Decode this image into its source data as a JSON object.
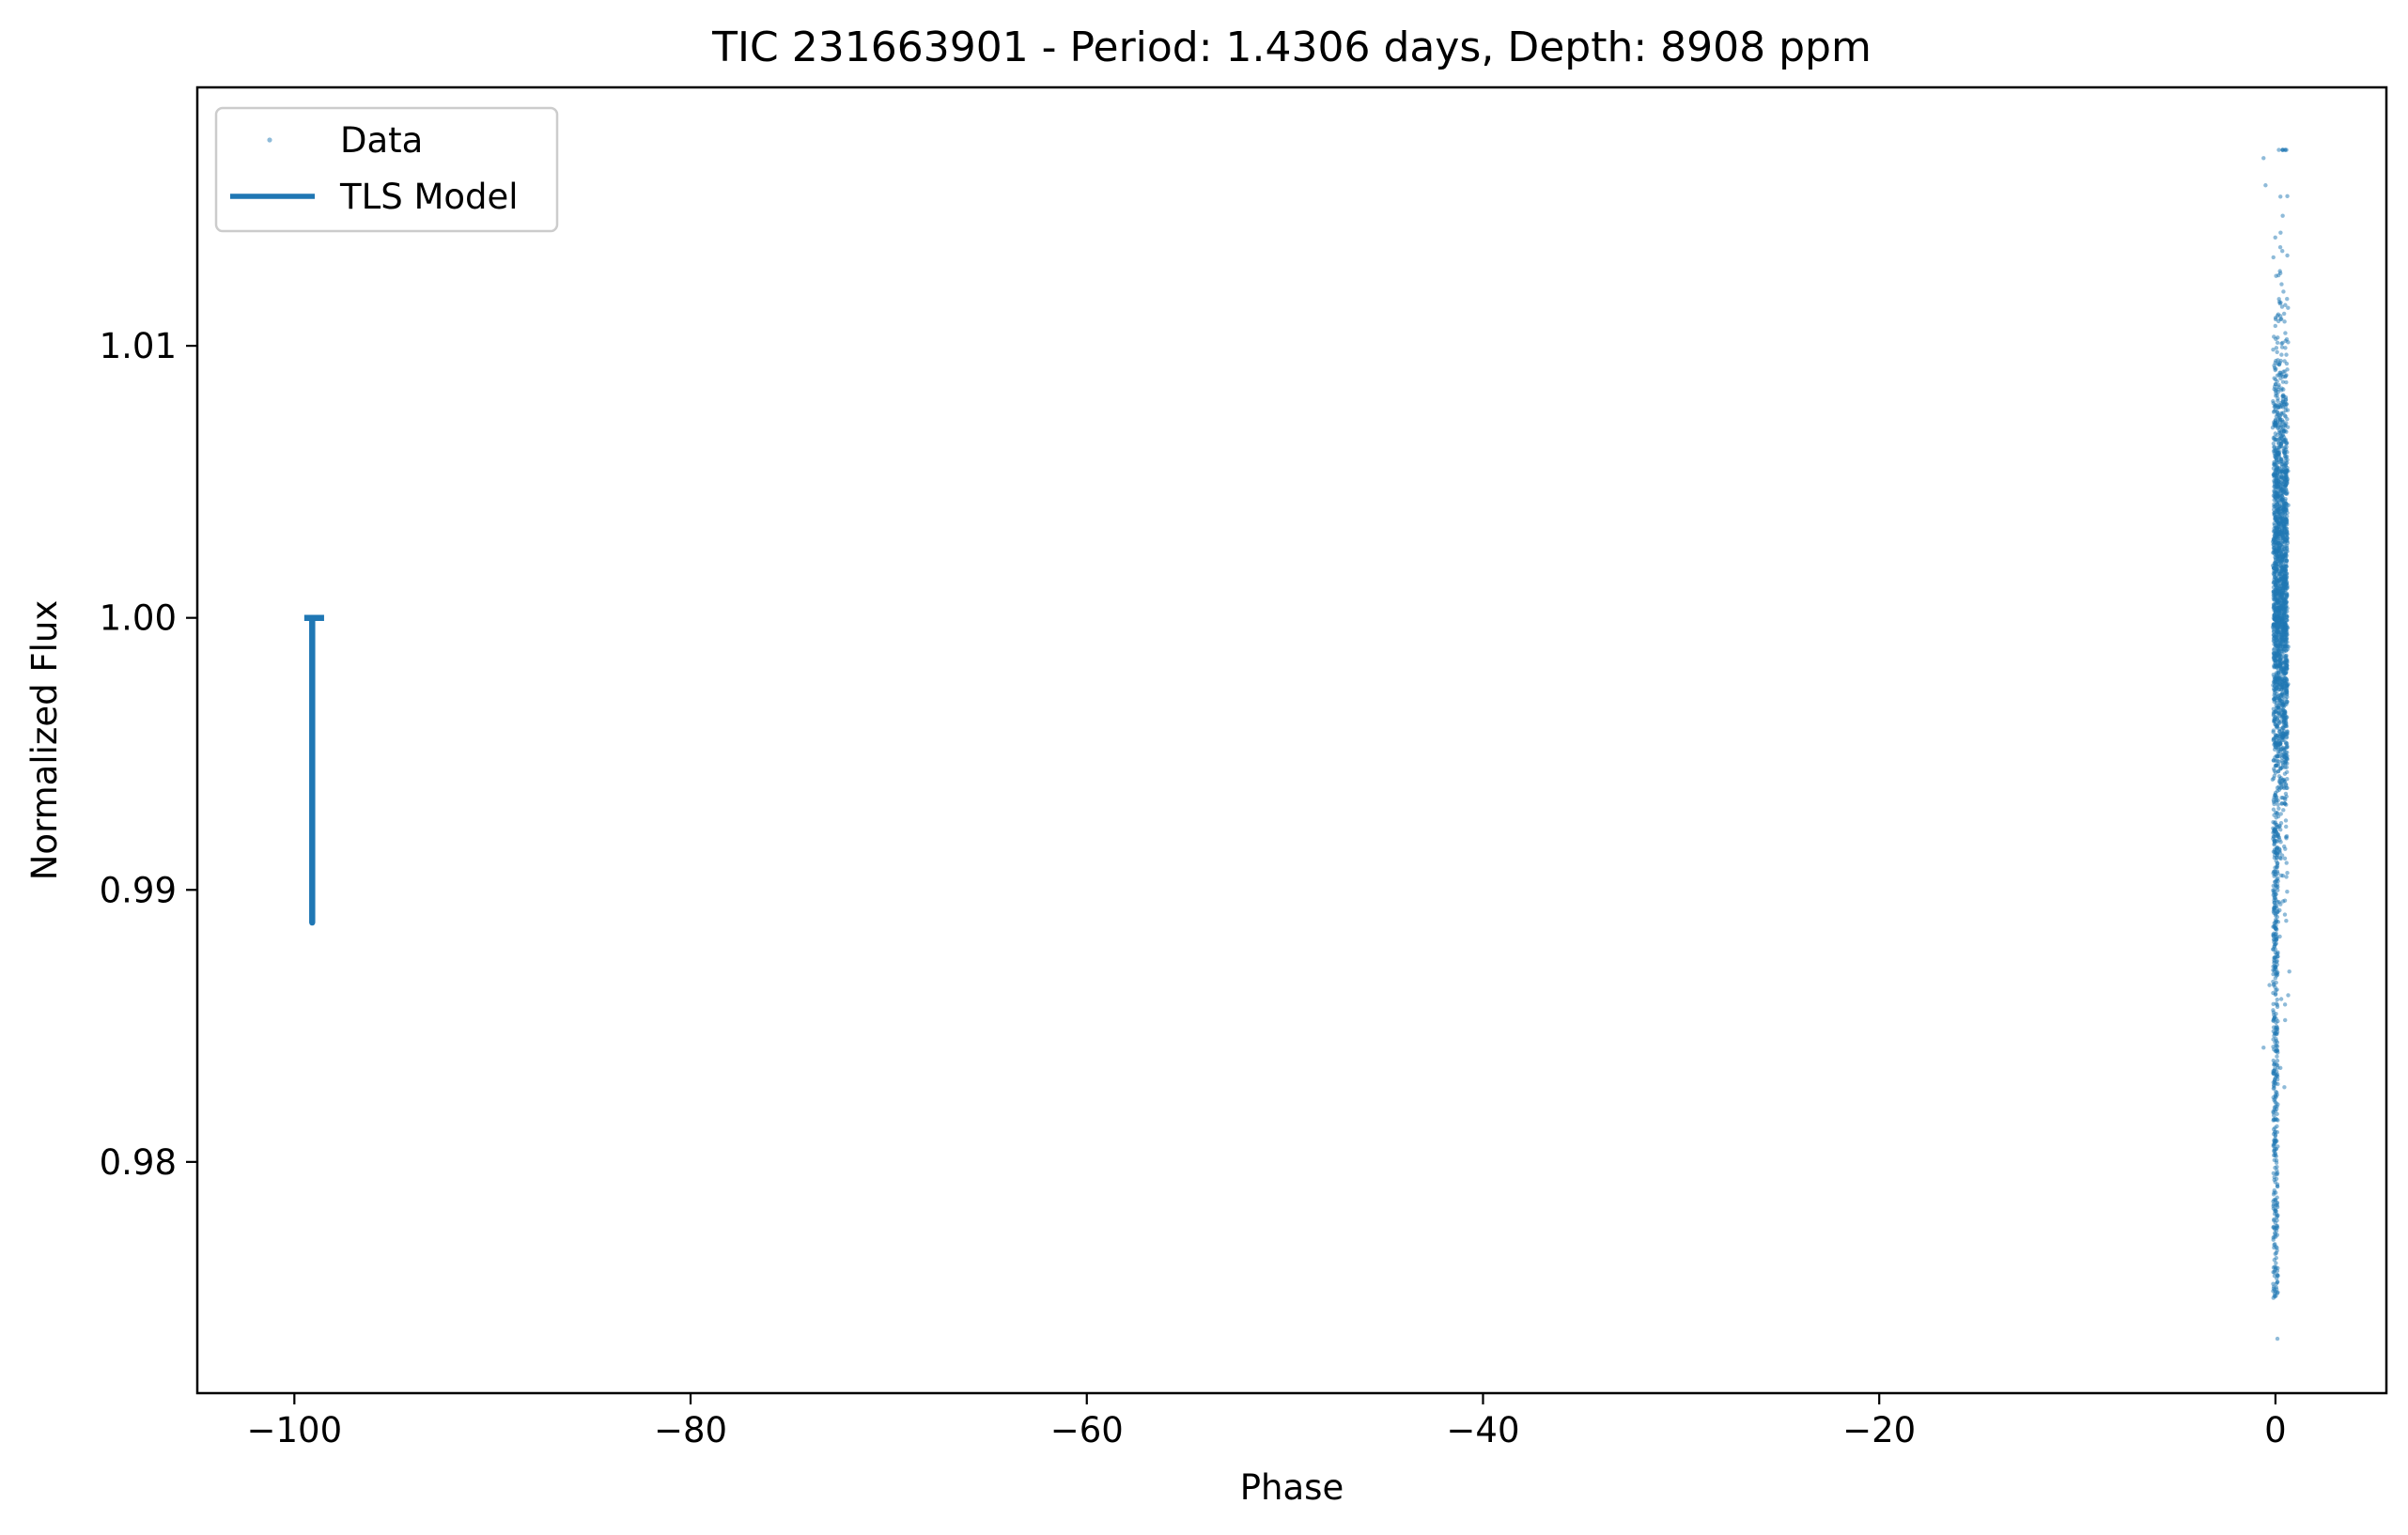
{
  "chart_data": {
    "type": "scatter",
    "title": "TIC 231663901 - Period: 1.4306 days, Depth: 8908 ppm",
    "xlabel": "Phase",
    "ylabel": "Normalized Flux",
    "xlim": [
      -104.9,
      5.6
    ],
    "ylim": [
      0.9715,
      1.0195
    ],
    "xticks": [
      {
        "value": -100,
        "label": "−100"
      },
      {
        "value": -80,
        "label": "−80"
      },
      {
        "value": -60,
        "label": "−60"
      },
      {
        "value": -40,
        "label": "−40"
      },
      {
        "value": -20,
        "label": "−20"
      },
      {
        "value": 0,
        "label": "0"
      }
    ],
    "yticks": [
      {
        "value": 0.98,
        "label": "0.98"
      },
      {
        "value": 0.99,
        "label": "0.99"
      },
      {
        "value": 1.0,
        "label": "1.00"
      },
      {
        "value": 1.01,
        "label": "1.01"
      }
    ],
    "grid": false,
    "legend": {
      "position": "upper-left",
      "entries": [
        {
          "label": "Data",
          "marker": "dot"
        },
        {
          "label": "TLS Model",
          "marker": "line"
        }
      ]
    },
    "series": [
      {
        "name": "Data",
        "kind": "scatter",
        "color": "#1f77b4",
        "opacity": 0.5,
        "cluster": {
          "x_range": [
            -0.1,
            0.6
          ],
          "y_core_range": [
            0.9925,
            1.0095
          ],
          "y_min": 0.9735,
          "y_max": 1.0172,
          "tail_low_x": 0.0,
          "tail_low_y": 0.975
        },
        "outliers": [
          {
            "x": 0.5,
            "y": 1.0172
          },
          {
            "x": -0.6,
            "y": 1.0169
          },
          {
            "x": 0.6,
            "y": 1.0155
          },
          {
            "x": -0.5,
            "y": 1.0159
          },
          {
            "x": -0.6,
            "y": 0.9842
          },
          {
            "x": 0.1,
            "y": 0.9735
          },
          {
            "x": -0.3,
            "y": 0.9865
          },
          {
            "x": 0.7,
            "y": 0.987
          }
        ]
      },
      {
        "name": "TLS Model",
        "kind": "line",
        "color": "#1f77b4",
        "points": [
          {
            "x": -99.5,
            "y": 1.0
          },
          {
            "x": -98.5,
            "y": 1.0
          },
          {
            "x": -99.1,
            "y": 1.0
          },
          {
            "x": -99.1,
            "y": 0.9888
          }
        ]
      }
    ]
  }
}
